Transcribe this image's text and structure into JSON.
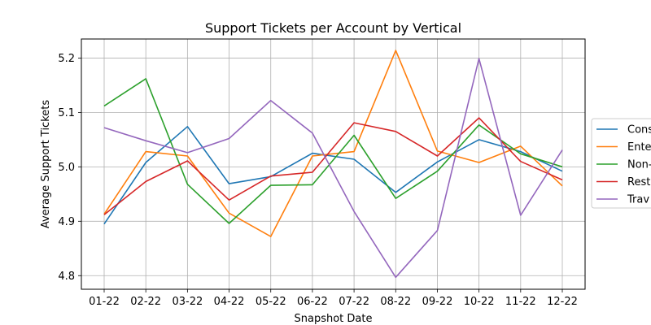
{
  "chart_data": {
    "type": "line",
    "title": "Support Tickets per Account by Vertical",
    "xlabel": "Snapshot Date",
    "ylabel": "Average Support Tickets",
    "categories": [
      "01-22",
      "02-22",
      "03-22",
      "04-22",
      "05-22",
      "06-22",
      "07-22",
      "08-22",
      "09-22",
      "10-22",
      "11-22",
      "12-22"
    ],
    "ylim": [
      4.775,
      5.235
    ],
    "yticks": [
      4.8,
      4.9,
      5.0,
      5.1,
      5.2
    ],
    "ytick_labels": [
      "4.8",
      "4.9",
      "5.0",
      "5.1",
      "5.2"
    ],
    "grid": true,
    "legend_position": "center-right",
    "series": [
      {
        "name": "Cons",
        "color": "#1f77b4",
        "values": [
          4.895,
          5.008,
          5.074,
          4.969,
          4.982,
          5.025,
          5.014,
          4.953,
          5.009,
          5.05,
          5.028,
          4.992
        ]
      },
      {
        "name": "Ente",
        "color": "#ff7f0e",
        "values": [
          4.913,
          5.028,
          5.02,
          4.915,
          4.872,
          5.02,
          5.028,
          5.214,
          5.029,
          5.008,
          5.038,
          4.965
        ]
      },
      {
        "name": "Non-",
        "color": "#2ca02c",
        "values": [
          5.112,
          5.162,
          4.968,
          4.896,
          4.966,
          4.967,
          5.058,
          4.942,
          4.992,
          5.077,
          5.024,
          5.0
        ]
      },
      {
        "name": "Rest",
        "color": "#d62728",
        "values": [
          4.912,
          4.973,
          5.011,
          4.939,
          4.983,
          4.99,
          5.081,
          5.065,
          5.02,
          5.09,
          5.01,
          4.976
        ]
      },
      {
        "name": "Trav",
        "color": "#9467bd",
        "values": [
          5.072,
          5.048,
          5.026,
          5.052,
          5.122,
          5.062,
          4.918,
          4.797,
          4.883,
          5.199,
          4.911,
          5.031
        ]
      }
    ]
  }
}
